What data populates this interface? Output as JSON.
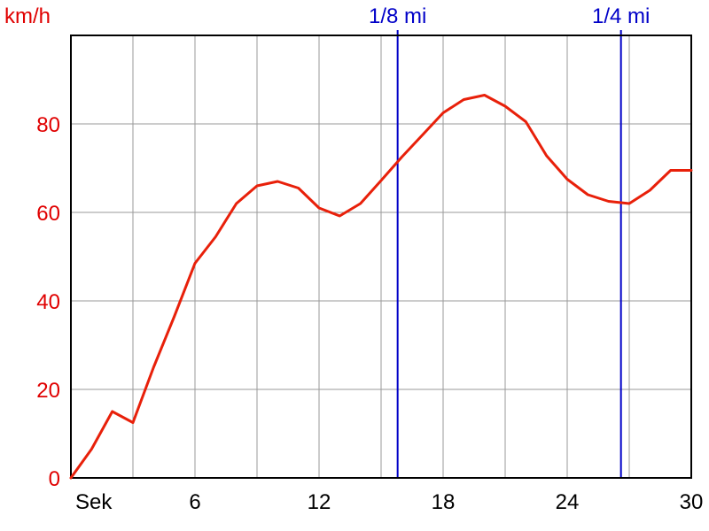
{
  "chart_data": {
    "type": "line",
    "title": "",
    "ylabel": "km/h",
    "xlabel": "Sek",
    "xlim": [
      0,
      30
    ],
    "ylim": [
      0,
      100
    ],
    "x_ticks": [
      6,
      12,
      18,
      24,
      30
    ],
    "y_ticks": [
      0,
      20,
      40,
      60,
      80
    ],
    "grid": true,
    "colors": {
      "series": "#e8200a",
      "markers": "#0000c8",
      "grid": "#9a9a9a",
      "y_text": "#e00000"
    },
    "series": [
      {
        "x": [
          0,
          1,
          2,
          3,
          4,
          5,
          6,
          7,
          8,
          9,
          10,
          11,
          12,
          13,
          14,
          15,
          16,
          17,
          18,
          19,
          20,
          21,
          22,
          23,
          24,
          25,
          26,
          27,
          28,
          29,
          30
        ],
        "values": [
          0,
          6.5,
          15,
          12.5,
          25,
          36.5,
          48.5,
          54.5,
          62,
          66,
          67,
          65.5,
          61,
          59.2,
          62,
          67.2,
          72.5,
          77.5,
          82.5,
          85.5,
          86.5,
          84,
          80.5,
          72.8,
          67.5,
          64,
          62.5,
          62,
          65,
          69.5,
          69.5
        ]
      }
    ],
    "markers": [
      {
        "label": "1/8 mi",
        "x": 15.8
      },
      {
        "label": "1/4 mi",
        "x": 26.6
      }
    ]
  }
}
